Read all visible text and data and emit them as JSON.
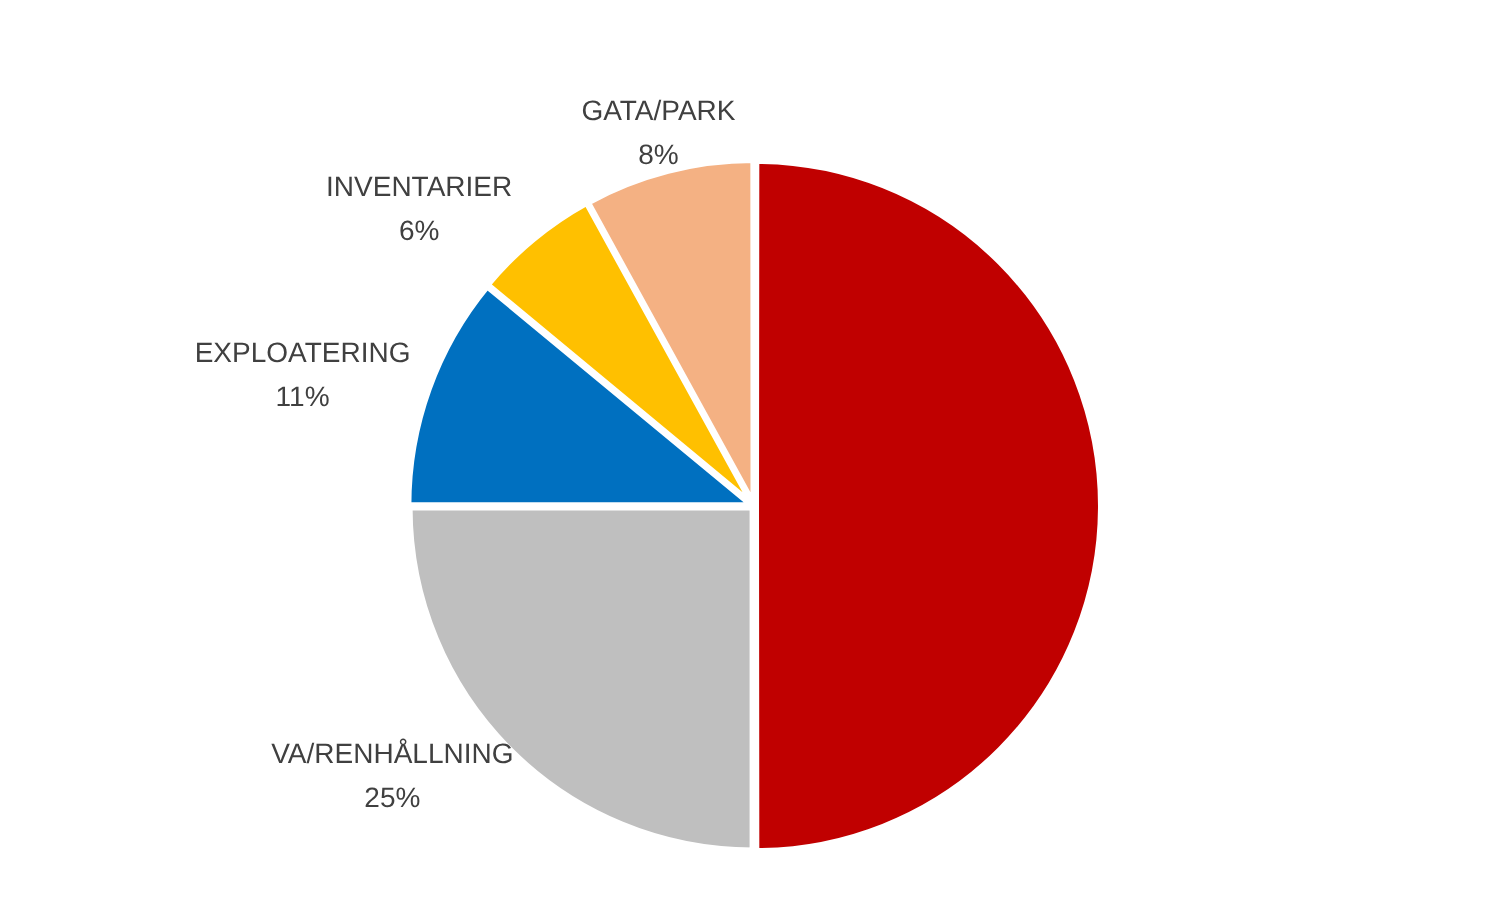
{
  "chart_data": {
    "type": "pie",
    "categories": [
      null,
      "VA/RENHÅLLNING",
      "EXPLOATERING",
      "INVENTARIER",
      "GATA/PARK"
    ],
    "values": [
      50,
      25,
      11,
      6,
      8
    ],
    "colors": [
      "#c00000",
      "#bfbfbf",
      "#0070c0",
      "#ffc000",
      "#f4b183"
    ],
    "value_labels": [
      null,
      "25%",
      "11%",
      "6%",
      "8%"
    ],
    "legend": false
  }
}
